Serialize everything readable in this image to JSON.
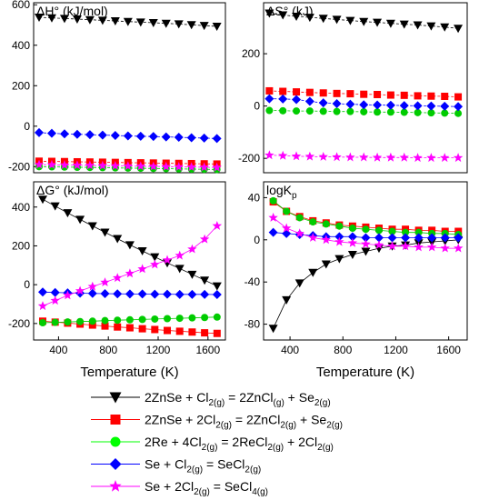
{
  "chart_data": [
    {
      "type": "scatter",
      "title": "ΔH° (kJ/mol)",
      "xlim": [
        230,
        1740
      ],
      "ylim": [
        -230,
        610
      ],
      "xticks": [],
      "yticks": [
        -200,
        0,
        200,
        400,
        600
      ],
      "xtick_labels": [],
      "ytick_labels": [
        "-200",
        "0",
        "200",
        "400",
        "600"
      ],
      "x": [
        273,
        373,
        473,
        573,
        673,
        773,
        873,
        973,
        1073,
        1173,
        1273,
        1373,
        1473,
        1573,
        1673
      ],
      "series": [
        {
          "name": "2ZnSe + Cl2(g) = 2ZnCl(g) + Se2(g)",
          "color": "#000000",
          "marker": "triangle-down",
          "line": "dash",
          "values": [
            538,
            535,
            532,
            529,
            526,
            523,
            520,
            517,
            514,
            511,
            508,
            505,
            501,
            497,
            493
          ]
        },
        {
          "name": "2ZnSe + 2Cl2(g) = 2ZnCl2(g) + Se2(g)",
          "color": "#ff0000",
          "marker": "square",
          "line": "dash",
          "values": [
            -173,
            -174,
            -175,
            -176,
            -177,
            -178,
            -179,
            -180,
            -181,
            -182,
            -183,
            -184,
            -185,
            -186,
            -187
          ]
        },
        {
          "name": "2Re + 4Cl2(g) = 2ReCl2(g) + 2Cl2(g)",
          "color": "#00cc00",
          "marker": "circle",
          "line": "dash",
          "values": [
            -200,
            -201,
            -202,
            -203,
            -204,
            -205,
            -206,
            -207,
            -208,
            -209,
            -210,
            -211,
            -212,
            -213,
            -214
          ]
        },
        {
          "name": "Se + Cl2(g) = SeCl2(g)",
          "color": "#0000ff",
          "marker": "diamond",
          "line": "dash",
          "values": [
            -32,
            -35,
            -38,
            -40,
            -42,
            -44,
            -46,
            -48,
            -50,
            -51,
            -53,
            -55,
            -57,
            -59,
            -61
          ]
        },
        {
          "name": "Se + 2Cl2(g) = SeCl4(g)",
          "color": "#ff00ff",
          "marker": "star",
          "line": "dash",
          "values": [
            -190,
            -191,
            -192,
            -193,
            -194,
            -195,
            -196,
            -197,
            -198,
            -199,
            -200,
            -201,
            -202,
            -203,
            -204
          ]
        }
      ]
    },
    {
      "type": "scatter",
      "title": "ΔS° (kJ)",
      "xlim": [
        230,
        1740
      ],
      "ylim": [
        -255,
        395
      ],
      "xticks": [],
      "yticks": [
        -200,
        0,
        200
      ],
      "xtick_labels": [],
      "ytick_labels": [
        "-200",
        "0",
        "200"
      ],
      "x": [
        273,
        373,
        473,
        573,
        673,
        773,
        873,
        973,
        1073,
        1173,
        1273,
        1373,
        1473,
        1573,
        1673
      ],
      "series": [
        {
          "name": "2ZnSe + Cl2(g) = 2ZnCl(g) + Se2(g)",
          "color": "#000000",
          "marker": "triangle-down",
          "line": "dash",
          "values": [
            355,
            348,
            343,
            339,
            335,
            331,
            327,
            323,
            320,
            316,
            313,
            310,
            306,
            302,
            297
          ]
        },
        {
          "name": "2ZnSe + 2Cl2(g) = 2ZnCl2(g) + Se2(g)",
          "color": "#ff0000",
          "marker": "square",
          "line": "dash",
          "values": [
            58,
            56,
            54,
            52,
            50,
            48,
            47,
            45,
            44,
            42,
            41,
            39,
            38,
            37,
            35
          ]
        },
        {
          "name": "2Re + 4Cl2(g) = 2ReCl2(g) + 2Cl2(g)",
          "color": "#00cc00",
          "marker": "circle",
          "line": "dash",
          "values": [
            -17,
            -18,
            -19,
            -19,
            -20,
            -21,
            -21,
            -22,
            -23,
            -23,
            -24,
            -25,
            -26,
            -27,
            -28
          ]
        },
        {
          "name": "Se + Cl2(g) = SeCl2(g)",
          "color": "#0000ff",
          "marker": "diamond",
          "line": "dash",
          "values": [
            28,
            27,
            25,
            18,
            12,
            9,
            7,
            5,
            4,
            3,
            2,
            1,
            0,
            -1,
            -2
          ]
        },
        {
          "name": "Se + 2Cl2(g) = SeCl4(g)",
          "color": "#ff00ff",
          "marker": "star",
          "line": "dash",
          "values": [
            -188,
            -190,
            -192,
            -193,
            -194,
            -195,
            -196,
            -196,
            -197,
            -197,
            -197,
            -198,
            -198,
            -198,
            -198
          ]
        }
      ]
    },
    {
      "type": "scatter",
      "title": "ΔG° (kJ/mol)",
      "xlim": [
        200,
        1740
      ],
      "ylim": [
        -285,
        530
      ],
      "xticks": [
        400,
        800,
        1200,
        1600
      ],
      "yticks": [
        -200,
        0,
        200,
        400
      ],
      "xtick_labels": [
        "400",
        "800",
        "1200",
        "1600"
      ],
      "ytick_labels": [
        "-200",
        "0",
        "200",
        "400"
      ],
      "x": [
        273,
        373,
        473,
        573,
        673,
        773,
        873,
        973,
        1073,
        1173,
        1273,
        1373,
        1473,
        1573,
        1673
      ],
      "series": [
        {
          "name": "2ZnSe + Cl2(g) = 2ZnCl(g) + Se2(g)",
          "color": "#000000",
          "marker": "triangle-down",
          "line": "solid",
          "values": [
            440,
            405,
            370,
            336,
            303,
            270,
            237,
            205,
            174,
            143,
            112,
            83,
            53,
            23,
            -7
          ]
        },
        {
          "name": "2ZnSe + 2Cl2(g) = 2ZnCl2(g) + Se2(g)",
          "color": "#ff0000",
          "marker": "square",
          "line": "solid",
          "values": [
            -188,
            -193,
            -198,
            -203,
            -208,
            -213,
            -218,
            -222,
            -227,
            -231,
            -236,
            -240,
            -244,
            -248,
            -251
          ]
        },
        {
          "name": "2Re + 4Cl2(g) = 2ReCl2(g) + 2Cl2(g)",
          "color": "#00cc00",
          "marker": "circle",
          "line": "solid",
          "values": [
            -196,
            -194,
            -192,
            -190,
            -188,
            -185,
            -183,
            -181,
            -179,
            -177,
            -175,
            -173,
            -171,
            -169,
            -167
          ]
        },
        {
          "name": "Se + Cl2(g) = SeCl2(g)",
          "color": "#0000ff",
          "marker": "diamond",
          "line": "solid",
          "values": [
            -38,
            -40,
            -42,
            -44,
            -45,
            -46,
            -47,
            -48,
            -48,
            -49,
            -49,
            -50,
            -50,
            -50,
            -51
          ]
        },
        {
          "name": "Se + 2Cl2(g) = SeCl4(g)",
          "color": "#ff00ff",
          "marker": "star",
          "line": "solid",
          "values": [
            -110,
            -82,
            -55,
            -32,
            -10,
            12,
            35,
            58,
            81,
            104,
            127,
            150,
            183,
            234,
            303
          ]
        }
      ]
    },
    {
      "type": "scatter",
      "title": "logKp",
      "xlim": [
        200,
        1740
      ],
      "ylim": [
        -95,
        55
      ],
      "xticks": [
        400,
        800,
        1200,
        1600
      ],
      "yticks": [
        -80,
        -40,
        0,
        40
      ],
      "xtick_labels": [
        "400",
        "800",
        "1200",
        "1600"
      ],
      "ytick_labels": [
        "-80",
        "-40",
        "0",
        "40"
      ],
      "x": [
        273,
        373,
        473,
        573,
        673,
        773,
        873,
        973,
        1073,
        1173,
        1273,
        1373,
        1473,
        1573,
        1673
      ],
      "series": [
        {
          "name": "2ZnSe + Cl2(g) = 2ZnCl(g) + Se2(g)",
          "color": "#000000",
          "marker": "triangle-down",
          "line": "solid",
          "values": [
            -84,
            -57,
            -41,
            -31,
            -23,
            -18,
            -14,
            -11,
            -8,
            -6,
            -5,
            -3,
            -2,
            -1,
            0
          ]
        },
        {
          "name": "2ZnSe + 2Cl2(g) = 2ZnCl2(g) + Se2(g)",
          "color": "#ff0000",
          "marker": "square",
          "line": "solid",
          "values": [
            36,
            27,
            22,
            18,
            16,
            14,
            13,
            12,
            11,
            10,
            10,
            9,
            9,
            8,
            8
          ]
        },
        {
          "name": "2Re + 4Cl2(g) = 2ReCl2(g) + 2Cl2(g)",
          "color": "#00cc00",
          "marker": "circle",
          "line": "solid",
          "values": [
            37,
            27,
            21,
            17,
            15,
            13,
            11,
            10,
            9,
            8,
            7,
            7,
            6,
            6,
            5
          ]
        },
        {
          "name": "Se + Cl2(g) = SeCl2(g)",
          "color": "#0000ff",
          "marker": "diamond",
          "line": "solid",
          "values": [
            7,
            6,
            5,
            4,
            3,
            3,
            3,
            2,
            2,
            2,
            2,
            2,
            2,
            2,
            2
          ]
        },
        {
          "name": "Se + 2Cl2(g) = SeCl4(g)",
          "color": "#ff00ff",
          "marker": "star",
          "line": "solid",
          "values": [
            21,
            11,
            6,
            2,
            0,
            -2,
            -3,
            -4,
            -5,
            -6,
            -6,
            -7,
            -7,
            -8,
            -8
          ]
        }
      ]
    }
  ],
  "xlabel": "Temperature (K)",
  "legend": [
    {
      "marker": "triangle-down",
      "color": "#000000",
      "parts": [
        [
          "2ZnSe + Cl",
          ""
        ],
        [
          "2(g)",
          "sub"
        ],
        [
          " = 2ZnCl",
          ""
        ],
        [
          "(g)",
          "sub"
        ],
        [
          " + Se",
          ""
        ],
        [
          "2(g)",
          "sub"
        ]
      ]
    },
    {
      "marker": "square",
      "color": "#ff0000",
      "parts": [
        [
          "2ZnSe + 2Cl",
          ""
        ],
        [
          "2(g)",
          "sub"
        ],
        [
          " = 2ZnCl",
          ""
        ],
        [
          "2(g)",
          "sub"
        ],
        [
          " + Se",
          ""
        ],
        [
          "2(g)",
          "sub"
        ]
      ]
    },
    {
      "marker": "circle",
      "color": "#00ff00",
      "parts": [
        [
          "2Re + 4Cl",
          ""
        ],
        [
          "2(g)",
          "sub"
        ],
        [
          " = 2ReCl",
          ""
        ],
        [
          "2(g)",
          "sub"
        ],
        [
          " + 2Cl",
          ""
        ],
        [
          "2(g)",
          "sub"
        ]
      ]
    },
    {
      "marker": "diamond",
      "color": "#0000ff",
      "parts": [
        [
          "Se + Cl",
          ""
        ],
        [
          "2(g)",
          "sub"
        ],
        [
          " = SeCl",
          ""
        ],
        [
          "2(g)",
          "sub"
        ]
      ]
    },
    {
      "marker": "star",
      "color": "#ff00ff",
      "parts": [
        [
          "Se + 2Cl",
          ""
        ],
        [
          "2(g)",
          "sub"
        ],
        [
          " = SeCl",
          ""
        ],
        [
          "4(g)",
          "sub"
        ]
      ]
    }
  ]
}
